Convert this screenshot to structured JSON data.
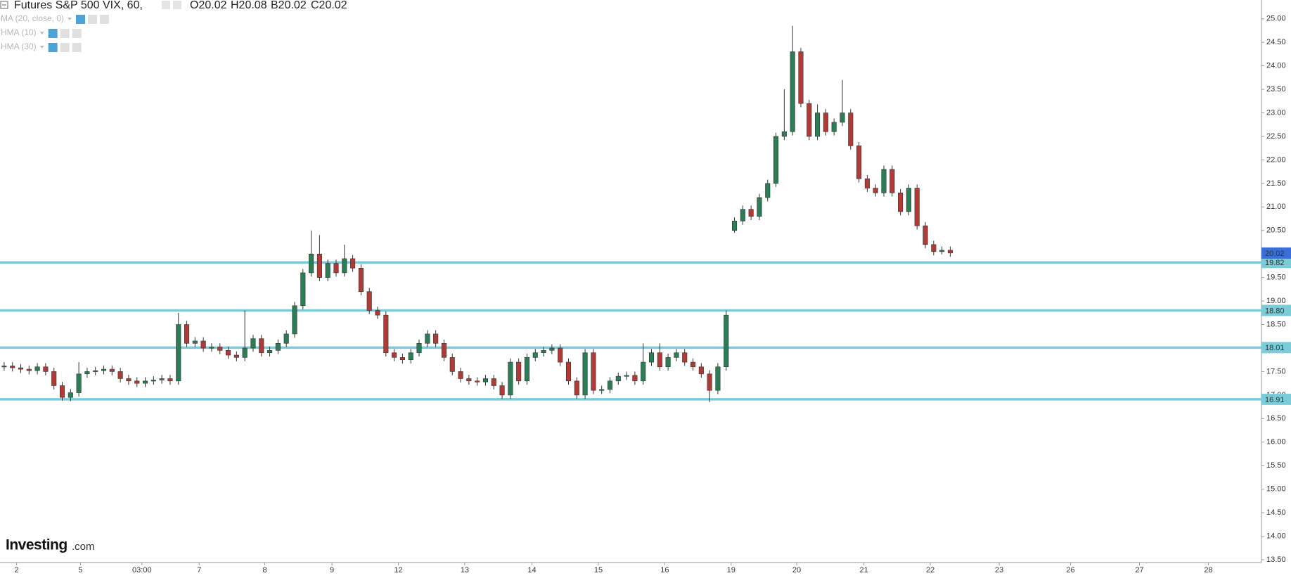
{
  "chart_data": {
    "type": "candlestick",
    "title": "Futures S&P 500 VIX, 60,",
    "ohlc_legend": [
      "O20.02",
      "H20.08",
      "B20.02",
      "C20.02"
    ],
    "indicators": [
      "MA (20, close, 0)",
      "HMA (10)",
      "HMA (30)"
    ],
    "logo": {
      "name": "Investing",
      "suffix": ".com"
    },
    "up_color": "#2a7d55",
    "down_color": "#b03a36",
    "level_color": "#7ccbd8",
    "last_color": "#3a6fd8",
    "xlim": [
      0,
      152
    ],
    "xticks": [
      {
        "value": 2,
        "label": "2"
      },
      {
        "value": 9.7,
        "label": "5"
      },
      {
        "value": 17.1,
        "label": "03:00"
      },
      {
        "value": 24,
        "label": "7"
      },
      {
        "value": 31.9,
        "label": "8"
      },
      {
        "value": 40,
        "label": "9"
      },
      {
        "value": 48,
        "label": "12"
      },
      {
        "value": 56,
        "label": "13"
      },
      {
        "value": 64.1,
        "label": "14"
      },
      {
        "value": 72.1,
        "label": "15"
      },
      {
        "value": 80.1,
        "label": "16"
      },
      {
        "value": 88.1,
        "label": "19"
      },
      {
        "value": 96,
        "label": "20"
      },
      {
        "value": 104.1,
        "label": "21"
      },
      {
        "value": 112.1,
        "label": "22"
      },
      {
        "value": 120.4,
        "label": "23"
      },
      {
        "value": 129,
        "label": "26"
      },
      {
        "value": 137.3,
        "label": "27"
      },
      {
        "value": 145.6,
        "label": "28"
      }
    ],
    "ylim": [
      13.44,
      25.4
    ],
    "yticks": [
      {
        "value": 13.5,
        "label": "13.50"
      },
      {
        "value": 14,
        "label": "14.00"
      },
      {
        "value": 14.5,
        "label": "14.50"
      },
      {
        "value": 15,
        "label": "15.00"
      },
      {
        "value": 15.5,
        "label": "15.50"
      },
      {
        "value": 16,
        "label": "16.00"
      },
      {
        "value": 16.5,
        "label": "16.50"
      },
      {
        "value": 17,
        "label": "17.00"
      },
      {
        "value": 17.5,
        "label": "17.50"
      },
      {
        "value": 18,
        "label": "18.00"
      },
      {
        "value": 18.5,
        "label": "18.50"
      },
      {
        "value": 19,
        "label": "19.00"
      },
      {
        "value": 19.5,
        "label": "19.50"
      },
      {
        "value": 20,
        "label": "20.00"
      },
      {
        "value": 20.5,
        "label": "20.50"
      },
      {
        "value": 21,
        "label": "21.00"
      },
      {
        "value": 21.5,
        "label": "21.50"
      },
      {
        "value": 22,
        "label": "22.00"
      },
      {
        "value": 22.5,
        "label": "22.50"
      },
      {
        "value": 23,
        "label": "23.00"
      },
      {
        "value": 23.5,
        "label": "23.50"
      },
      {
        "value": 24,
        "label": "24.00"
      },
      {
        "value": 24.5,
        "label": "24.50"
      },
      {
        "value": 25,
        "label": "25.00"
      }
    ],
    "levels": [
      19.82,
      {
        "value": 18.8,
        "label": "18.80"
      },
      18.01,
      16.91
    ],
    "last_price": 20.02,
    "open": [
      17.6,
      17.62,
      17.58,
      17.55,
      17.52,
      17.6,
      17.5,
      17.2,
      16.95,
      17.05,
      17.45,
      17.5,
      17.52,
      17.55,
      17.5,
      17.35,
      17.3,
      17.25,
      17.3,
      17.32,
      17.35,
      17.3,
      18.5,
      18.1,
      18.15,
      18.0,
      18.02,
      17.95,
      17.85,
      17.8,
      18.0,
      18.2,
      17.9,
      17.95,
      18.1,
      18.3,
      18.9,
      19.6,
      20.0,
      19.5,
      19.8,
      19.6,
      19.9,
      19.7,
      19.2,
      18.8,
      18.7,
      17.9,
      17.8,
      17.75,
      17.9,
      18.1,
      18.3,
      18.1,
      17.8,
      17.5,
      17.35,
      17.3,
      17.28,
      17.35,
      17.2,
      17.0,
      17.7,
      17.3,
      17.8,
      17.9,
      17.95,
      18.0,
      17.7,
      17.3,
      17.0,
      17.9,
      17.1,
      17.12,
      17.3,
      17.4,
      17.42,
      17.3,
      17.7,
      17.9,
      17.6,
      17.8,
      17.9,
      17.7,
      17.6,
      17.45,
      17.1,
      17.6,
      20.5,
      20.7,
      20.95,
      20.8,
      21.2,
      21.5,
      22.5,
      22.6,
      24.3,
      23.2,
      22.5,
      23.0,
      22.6,
      22.8,
      23.0,
      22.3,
      21.6,
      21.4,
      21.3,
      21.8,
      21.3,
      20.9,
      21.4,
      20.6,
      20.2,
      20.05,
      20.08
    ],
    "high": [
      17.7,
      17.7,
      17.66,
      17.63,
      17.68,
      17.68,
      17.58,
      17.28,
      17.13,
      17.7,
      17.58,
      17.6,
      17.63,
      17.63,
      17.58,
      17.43,
      17.38,
      17.38,
      17.4,
      17.43,
      17.43,
      18.75,
      18.58,
      18.23,
      18.23,
      18.1,
      18.1,
      18.03,
      17.93,
      18.8,
      18.28,
      18.28,
      18.03,
      18.18,
      18.38,
      18.98,
      19.68,
      20.5,
      20.4,
      19.88,
      19.88,
      20.2,
      19.98,
      19.78,
      19.28,
      18.88,
      18.78,
      17.98,
      17.88,
      17.98,
      18.18,
      18.38,
      18.38,
      18.18,
      17.88,
      17.58,
      17.43,
      17.38,
      17.43,
      17.43,
      17.28,
      17.78,
      17.78,
      17.88,
      17.98,
      18.03,
      18.08,
      18.08,
      17.78,
      17.38,
      17.98,
      17.98,
      17.2,
      17.38,
      17.48,
      17.5,
      17.5,
      18.1,
      17.98,
      18.1,
      17.88,
      17.98,
      17.98,
      17.78,
      17.68,
      17.53,
      17.68,
      18.8,
      20.78,
      21.03,
      21.03,
      21.28,
      21.58,
      22.58,
      23.5,
      24.85,
      24.38,
      23.28,
      23.18,
      23.08,
      22.88,
      23.7,
      23.08,
      22.38,
      21.68,
      21.48,
      21.88,
      21.88,
      21.38,
      21.48,
      21.48,
      20.68,
      20.28,
      20.16,
      20.16
    ],
    "low": [
      17.52,
      17.5,
      17.47,
      17.44,
      17.44,
      17.42,
      17.12,
      16.88,
      16.87,
      16.97,
      17.37,
      17.42,
      17.44,
      17.42,
      17.27,
      17.22,
      17.17,
      17.17,
      17.22,
      17.24,
      17.22,
      17.22,
      18.02,
      18.02,
      17.92,
      17.92,
      17.87,
      17.77,
      17.72,
      17.72,
      17.92,
      17.82,
      17.82,
      17.87,
      18.02,
      18.22,
      18.82,
      19.52,
      19.42,
      19.42,
      19.52,
      19.52,
      19.62,
      19.12,
      18.72,
      18.62,
      17.82,
      17.72,
      17.67,
      17.67,
      17.82,
      18.02,
      18.02,
      17.72,
      17.42,
      17.27,
      17.22,
      17.2,
      17.2,
      17.12,
      16.92,
      16.92,
      17.22,
      17.22,
      17.72,
      17.82,
      17.87,
      17.62,
      17.22,
      16.92,
      16.92,
      17.02,
      17.02,
      17.04,
      17.22,
      17.32,
      17.22,
      17.22,
      17.62,
      17.52,
      17.52,
      17.72,
      17.62,
      17.52,
      17.37,
      16.85,
      17.02,
      17.52,
      20.45,
      20.62,
      20.72,
      20.72,
      21.12,
      21.42,
      22.42,
      22.52,
      23.12,
      22.42,
      22.42,
      22.52,
      22.52,
      22.72,
      22.22,
      21.52,
      21.32,
      21.22,
      21.22,
      21.22,
      20.82,
      20.82,
      20.52,
      20.12,
      19.97,
      19.99,
      19.94
    ],
    "close": [
      17.62,
      17.58,
      17.55,
      17.52,
      17.6,
      17.5,
      17.2,
      16.95,
      17.05,
      17.45,
      17.5,
      17.52,
      17.55,
      17.5,
      17.35,
      17.3,
      17.25,
      17.3,
      17.32,
      17.35,
      17.3,
      18.5,
      18.1,
      18.15,
      18.0,
      18.02,
      17.95,
      17.85,
      17.8,
      18.0,
      18.2,
      17.9,
      17.95,
      18.1,
      18.3,
      18.9,
      19.6,
      20.0,
      19.5,
      19.8,
      19.6,
      19.9,
      19.7,
      19.2,
      18.8,
      18.7,
      17.9,
      17.8,
      17.75,
      17.9,
      18.1,
      18.3,
      18.1,
      17.8,
      17.5,
      17.35,
      17.3,
      17.28,
      17.35,
      17.2,
      17.0,
      17.7,
      17.3,
      17.8,
      17.9,
      17.95,
      18.0,
      17.7,
      17.3,
      17.0,
      17.9,
      17.1,
      17.12,
      17.3,
      17.4,
      17.42,
      17.3,
      17.7,
      17.9,
      17.6,
      17.8,
      17.9,
      17.7,
      17.6,
      17.45,
      17.1,
      17.6,
      18.7,
      20.7,
      20.95,
      20.8,
      21.2,
      21.5,
      22.5,
      22.6,
      24.3,
      23.2,
      22.5,
      23.0,
      22.6,
      22.8,
      23.0,
      22.3,
      21.6,
      21.4,
      21.3,
      21.8,
      21.3,
      20.9,
      21.4,
      20.6,
      20.2,
      20.05,
      20.08,
      20.02
    ]
  }
}
